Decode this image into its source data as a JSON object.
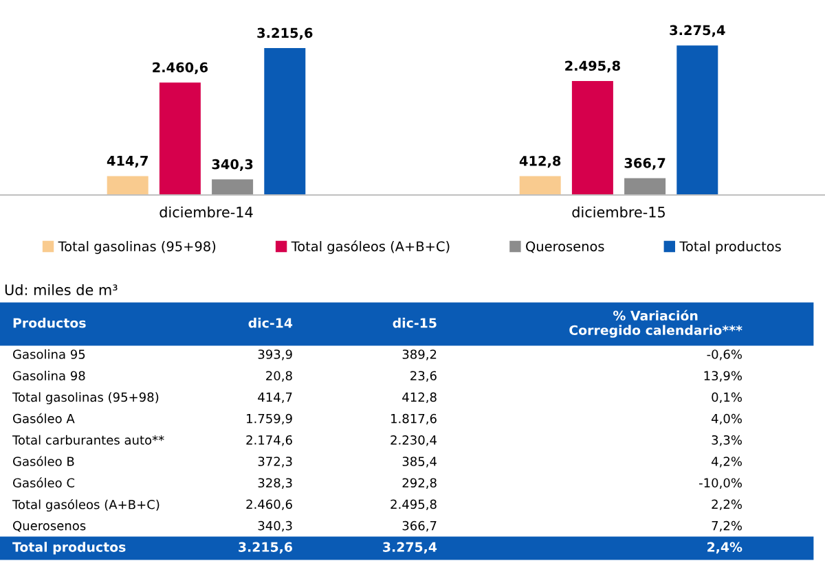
{
  "chart_data": {
    "type": "bar",
    "categories": [
      "diciembre-14",
      "diciembre-15"
    ],
    "series": [
      {
        "name": "Total gasolinas (95+98)",
        "color": "#f9cb8f",
        "values": [
          414.7,
          412.8
        ],
        "value_labels": [
          "414,7",
          "412,8"
        ]
      },
      {
        "name": "Total gasóleos (A+B+C)",
        "color": "#d6004c",
        "values": [
          2460.6,
          2495.8
        ],
        "value_labels": [
          "2.460,6",
          "2.495,8"
        ]
      },
      {
        "name": "Querosenos",
        "color": "#8c8c8c",
        "values": [
          340.3,
          366.7
        ],
        "value_labels": [
          "340,3",
          "366,7"
        ]
      },
      {
        "name": "Total productos",
        "color": "#0a5bb5",
        "values": [
          3215.6,
          3275.4
        ],
        "value_labels": [
          "3.215,6",
          "3.275,4"
        ]
      }
    ],
    "legend": "bottom",
    "grid": false,
    "annotations": [
      "Ud: miles de m³",
      "Productos",
      "dic-14",
      "dic-15",
      "% Variación\nCorregido calendario***",
      "Gasolina 95",
      "393,9",
      "389,2",
      "-0,6%",
      "Gasolina 98",
      "20,8",
      "23,6",
      "13,9%",
      "Total gasolinas (95+98)",
      "414,7",
      "412,8",
      "0,1%",
      "Gasóleo A",
      "1.759,9",
      "1.817,6",
      "4,0%",
      "Total carburantes auto**",
      "2.174,6",
      "2.230,4",
      "3,3%",
      "Gasóleo B",
      "372,3",
      "385,4",
      "4,2%",
      "Gasóleo C",
      "328,3",
      "292,8",
      "-10,0%",
      "Total gasóleos (A+B+C)",
      "2.460,6",
      "2.495,8",
      "2,2%",
      "Querosenos",
      "340,3",
      "366,7",
      "7,2%",
      "Total productos",
      "3.215,6",
      "3.275,4",
      "2,4%"
    ]
  }
}
